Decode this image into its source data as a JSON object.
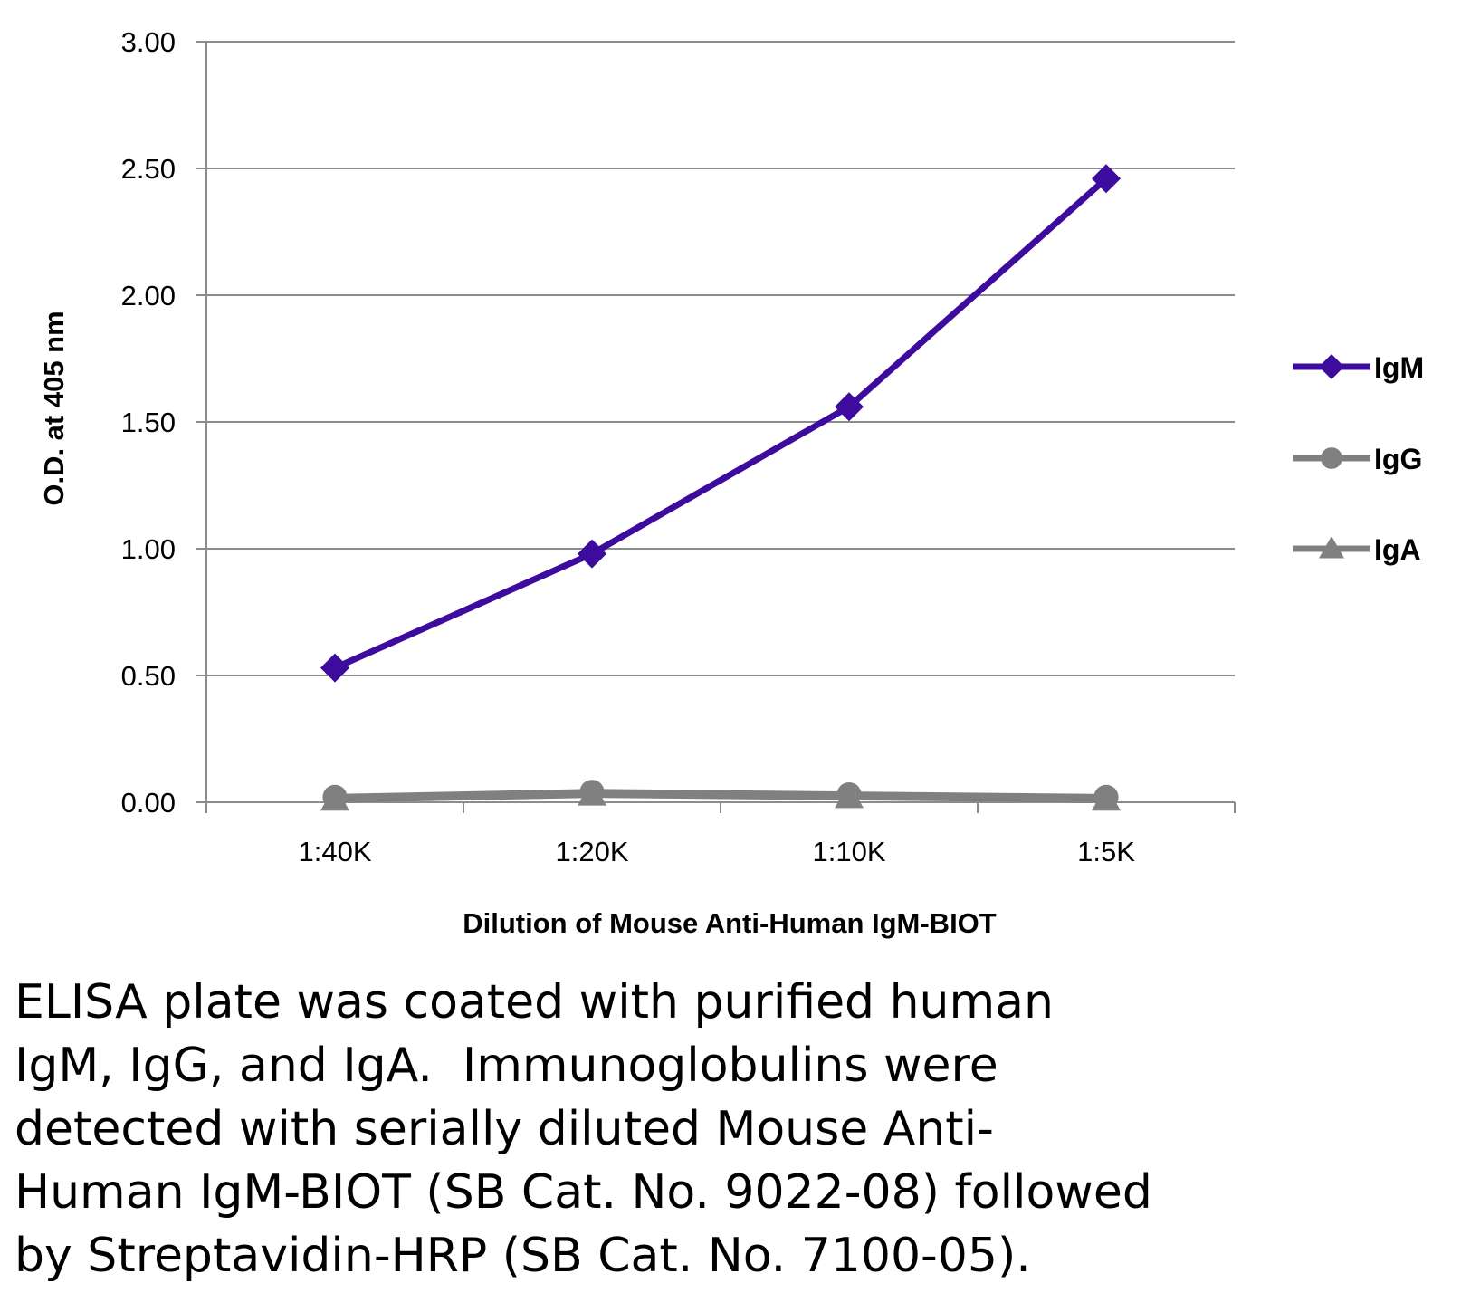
{
  "chart_data": {
    "type": "line",
    "title": "",
    "xlabel": "Dilution of Mouse Anti-Human IgM-BIOT",
    "ylabel": "O.D. at 405 nm",
    "categories": [
      "1:40K",
      "1:20K",
      "1:10K",
      "1:5K"
    ],
    "ylim": [
      0,
      3
    ],
    "yticks": [
      "0.00",
      "0.50",
      "1.00",
      "1.50",
      "2.00",
      "2.50",
      "3.00"
    ],
    "grid": "horizontal",
    "legend_position": "right",
    "series": [
      {
        "name": "IgM",
        "values": [
          0.53,
          0.98,
          1.56,
          2.46
        ],
        "color": "#3d0b9e",
        "marker": "diamond"
      },
      {
        "name": "IgG",
        "values": [
          0.02,
          0.04,
          0.03,
          0.02
        ],
        "color": "#808080",
        "marker": "circle"
      },
      {
        "name": "IgA",
        "values": [
          0.01,
          0.03,
          0.02,
          0.01
        ],
        "color": "#808080",
        "marker": "triangle"
      }
    ]
  },
  "caption": "ELISA plate was coated with purified human\nIgM, IgG, and IgA.  Immunoglobulins were\ndetected with serially diluted Mouse Anti-\nHuman IgM-BIOT (SB Cat. No. 9022-08) followed\nby Streptavidin-HRP (SB Cat. No. 7100-05)."
}
